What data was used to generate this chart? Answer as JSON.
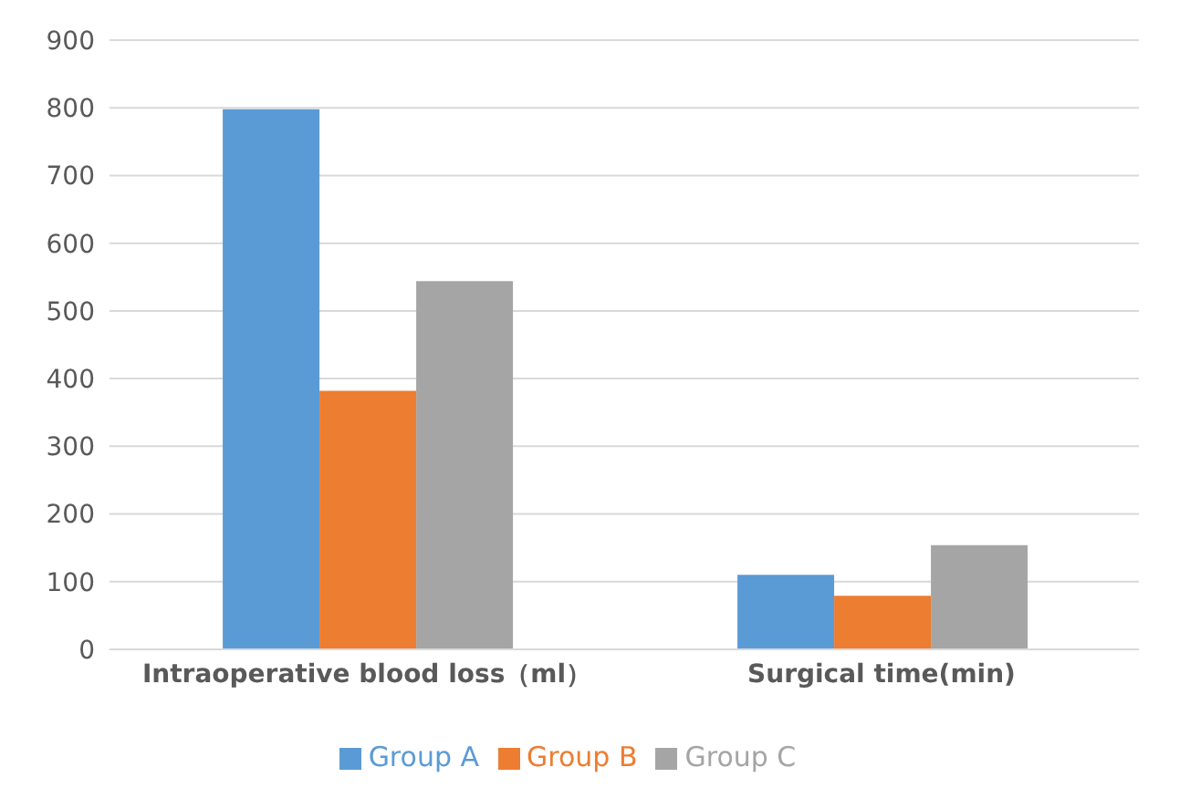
{
  "chart_data": {
    "type": "bar",
    "categories": [
      "Intraoperative blood loss（ml）",
      "Surgical time(min)"
    ],
    "series": [
      {
        "name": "Group A",
        "color": "#5b9bd5",
        "values": [
          798,
          110
        ]
      },
      {
        "name": "Group B",
        "color": "#ed7d31",
        "values": [
          382,
          79
        ]
      },
      {
        "name": "Group C",
        "color": "#a5a5a5",
        "values": [
          544,
          154
        ]
      }
    ],
    "ylim": [
      0,
      900
    ],
    "yticks": [
      0,
      100,
      200,
      300,
      400,
      500,
      600,
      700,
      800,
      900
    ],
    "grid": "y",
    "legend": "bottom"
  }
}
